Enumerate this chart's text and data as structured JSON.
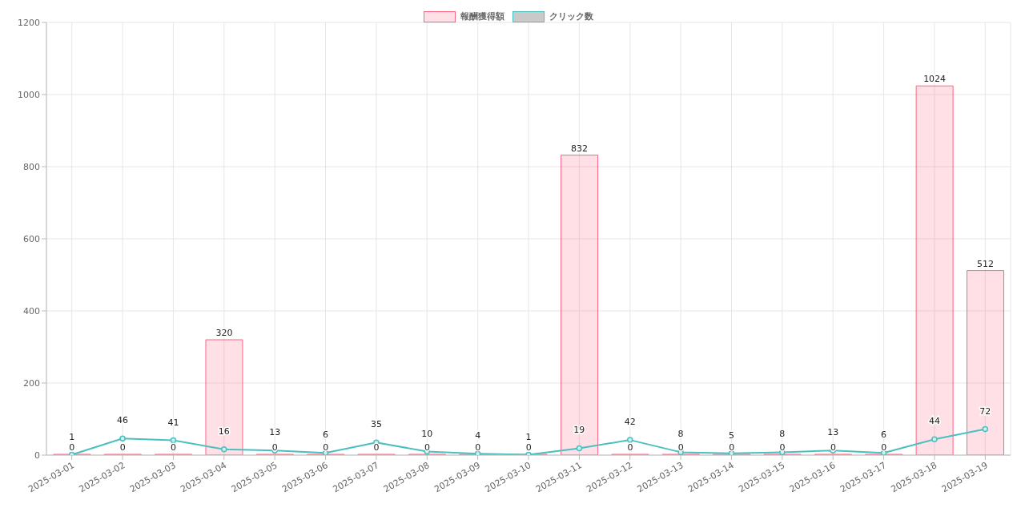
{
  "chart_data": {
    "type": "bar",
    "categories": [
      "2025-03-01",
      "2025-03-02",
      "2025-03-03",
      "2025-03-04",
      "2025-03-05",
      "2025-03-06",
      "2025-03-07",
      "2025-03-08",
      "2025-03-09",
      "2025-03-10",
      "2025-03-11",
      "2025-03-12",
      "2025-03-13",
      "2025-03-14",
      "2025-03-15",
      "2025-03-16",
      "2025-03-17",
      "2025-03-18",
      "2025-03-19"
    ],
    "series": [
      {
        "name": "報酬獲得額",
        "color": "#ff6384",
        "values": [
          0,
          0,
          0,
          320,
          0,
          0,
          0,
          0,
          0,
          0,
          832,
          0,
          0,
          0,
          0,
          0,
          0,
          1024,
          512
        ]
      },
      {
        "name": "クリック数",
        "type": "line",
        "color": "#4bc0c0",
        "values": [
          1,
          46,
          41,
          16,
          13,
          6,
          35,
          10,
          4,
          1,
          19,
          42,
          8,
          5,
          8,
          13,
          6,
          44,
          72
        ]
      }
    ],
    "ylim": [
      0,
      1200
    ],
    "yticks": [
      0,
      200,
      400,
      600,
      800,
      1000,
      1200
    ],
    "grid": true,
    "legend": "top",
    "data_labels": true,
    "marker": "circle",
    "line_style": "solid"
  }
}
